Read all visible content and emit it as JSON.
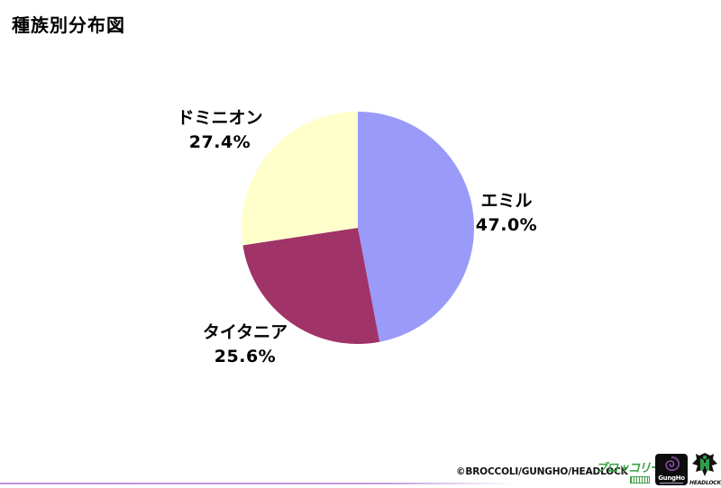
{
  "page": {
    "title": "種族別分布図",
    "background": "#ffffff"
  },
  "chart_data": {
    "type": "pie",
    "title": "種族別分布図",
    "start_angle_deg": 0,
    "direction": "clockwise",
    "legend_position": "labels-outside",
    "slices": [
      {
        "label": "エミル",
        "value_pct": 47.0,
        "display": "47.0%",
        "color": "#9a9af9"
      },
      {
        "label": "タイタニア",
        "value_pct": 25.6,
        "display": "25.6%",
        "color": "#a03368"
      },
      {
        "label": "ドミニオン",
        "value_pct": 27.4,
        "display": "27.4%",
        "color": "#ffffcc"
      }
    ]
  },
  "footer": {
    "copyright": "©BROCCOLI/GUNGHO/HEADLOCK",
    "logos": {
      "broccoli": {
        "text": "ブロッコリー",
        "color": "#3aa245"
      },
      "gungho": {
        "text": "GungHo",
        "swirl_color": "#8d4fa8",
        "bg": "#0d0d0d"
      },
      "headlock": {
        "text": "HEADLOCK",
        "color": "#2f9e4a"
      }
    },
    "accent_line_color": "#c29ae0"
  }
}
